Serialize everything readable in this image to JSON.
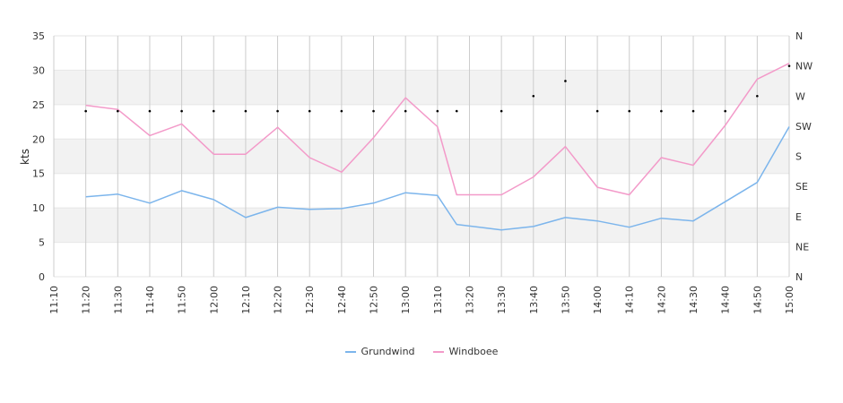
{
  "chart_data": {
    "type": "line",
    "ylabel": "kts",
    "ylim": [
      0,
      35
    ],
    "yticks": [
      0,
      5,
      10,
      15,
      20,
      25,
      30,
      35
    ],
    "right_axis_labels": [
      "N",
      "NE",
      "E",
      "SE",
      "S",
      "SW",
      "W",
      "NW",
      "N"
    ],
    "x_ticks": [
      "11:10",
      "11:20",
      "11:30",
      "11:40",
      "11:50",
      "12:00",
      "12:10",
      "12:20",
      "12:30",
      "12:40",
      "12:50",
      "13:00",
      "13:10",
      "13:20",
      "13:30",
      "13:40",
      "13:50",
      "14:00",
      "14:10",
      "14:20",
      "14:30",
      "14:40",
      "14:50",
      "15:00"
    ],
    "x_points": [
      "11:20",
      "11:30",
      "11:40",
      "11:50",
      "12:00",
      "12:10",
      "12:20",
      "12:30",
      "12:40",
      "12:50",
      "13:00",
      "13:10",
      "13:16",
      "13:30",
      "13:40",
      "13:50",
      "14:00",
      "14:10",
      "14:20",
      "14:30",
      "14:40",
      "14:50",
      "15:00"
    ],
    "series": [
      {
        "name": "Grundwind",
        "color": "#7cb5ec",
        "values": [
          11.6,
          12.0,
          10.7,
          12.5,
          11.2,
          8.6,
          10.1,
          9.8,
          9.9,
          10.7,
          12.2,
          11.8,
          7.6,
          6.8,
          7.3,
          8.6,
          8.1,
          7.2,
          8.5,
          8.1,
          10.9,
          13.7,
          21.8
        ]
      },
      {
        "name": "Windboee",
        "color": "#f39ac9",
        "values": [
          24.9,
          24.3,
          20.5,
          22.2,
          17.8,
          17.8,
          21.7,
          17.3,
          15.2,
          20.2,
          26.0,
          21.8,
          11.9,
          11.9,
          14.5,
          18.9,
          13.0,
          11.9,
          17.3,
          16.2,
          22.0,
          28.7,
          31.0
        ]
      }
    ],
    "direction_markers": [
      {
        "x": "11:20",
        "dir_index": 5.5
      },
      {
        "x": "11:30",
        "dir_index": 5.5
      },
      {
        "x": "11:40",
        "dir_index": 5.5
      },
      {
        "x": "11:50",
        "dir_index": 5.5
      },
      {
        "x": "12:00",
        "dir_index": 5.5
      },
      {
        "x": "12:10",
        "dir_index": 5.5
      },
      {
        "x": "12:20",
        "dir_index": 5.5
      },
      {
        "x": "12:30",
        "dir_index": 5.5
      },
      {
        "x": "12:40",
        "dir_index": 5.5
      },
      {
        "x": "12:50",
        "dir_index": 5.5
      },
      {
        "x": "13:00",
        "dir_index": 5.5
      },
      {
        "x": "13:10",
        "dir_index": 5.5
      },
      {
        "x": "13:16",
        "dir_index": 5.5
      },
      {
        "x": "13:30",
        "dir_index": 5.5
      },
      {
        "x": "13:40",
        "dir_index": 6.0
      },
      {
        "x": "13:50",
        "dir_index": 6.5
      },
      {
        "x": "14:00",
        "dir_index": 5.5
      },
      {
        "x": "14:10",
        "dir_index": 5.5
      },
      {
        "x": "14:20",
        "dir_index": 5.5
      },
      {
        "x": "14:30",
        "dir_index": 5.5
      },
      {
        "x": "14:40",
        "dir_index": 5.5
      },
      {
        "x": "14:50",
        "dir_index": 6.0
      },
      {
        "x": "15:00",
        "dir_index": 7.0
      }
    ],
    "grid": true,
    "legend_position": "bottom-center"
  }
}
